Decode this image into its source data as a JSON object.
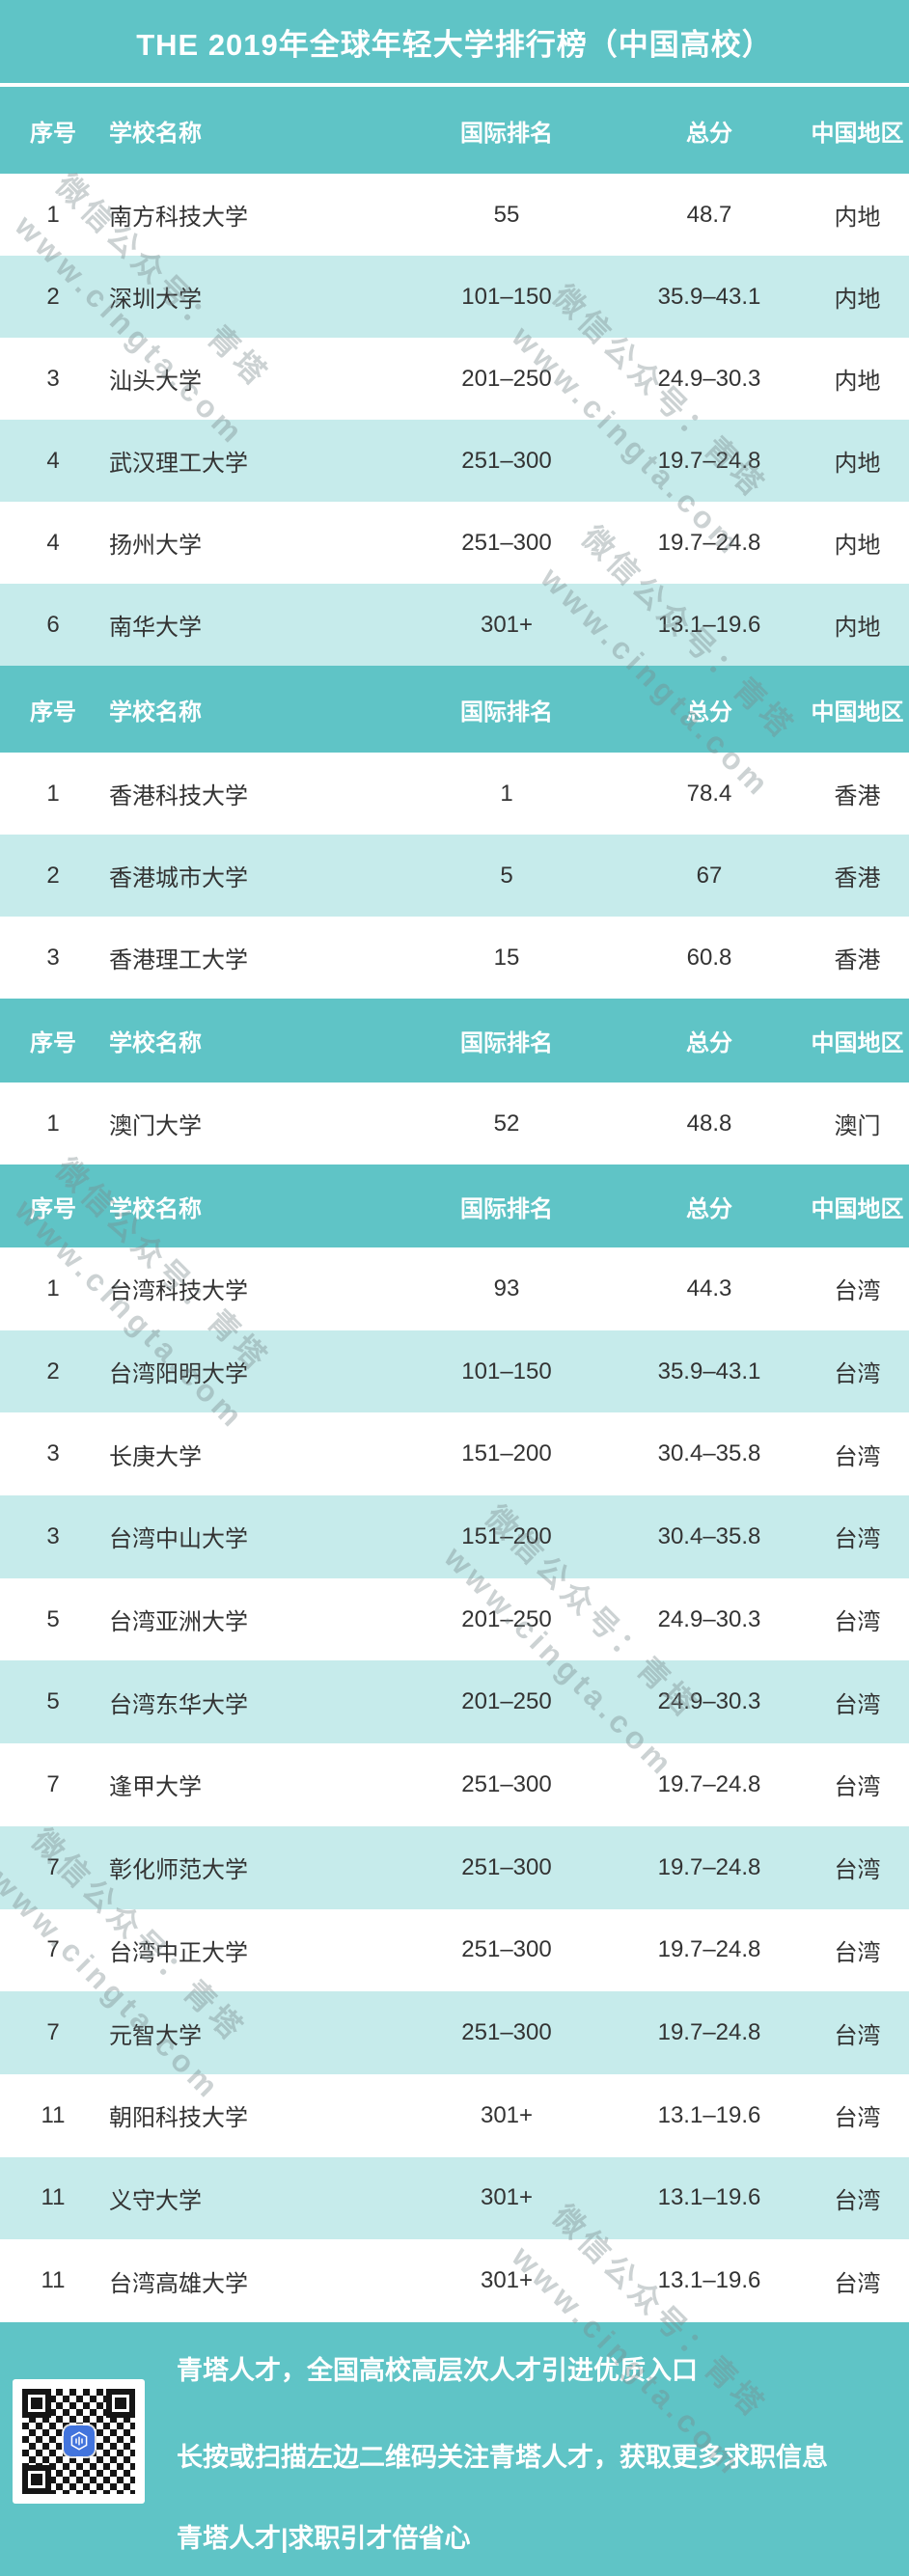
{
  "title": "THE 2019年全球年轻大学排行榜（中国高校）",
  "chart_data": {
    "type": "table",
    "title": "THE 2019年全球年轻大学排行榜（中国高校）",
    "columns": [
      "序号",
      "学校名称",
      "国际排名",
      "总分",
      "中国地区"
    ],
    "sections": [
      {
        "name": "mainland",
        "region": "内地",
        "rows": [
          [
            "1",
            "南方科技大学",
            "55",
            "48.7",
            "内地"
          ],
          [
            "2",
            "深圳大学",
            "101–150",
            "35.9–43.1",
            "内地"
          ],
          [
            "3",
            "汕头大学",
            "201–250",
            "24.9–30.3",
            "内地"
          ],
          [
            "4",
            "武汉理工大学",
            "251–300",
            "19.7–24.8",
            "内地"
          ],
          [
            "4",
            "扬州大学",
            "251–300",
            "19.7–24.8",
            "内地"
          ],
          [
            "6",
            "南华大学",
            "301+",
            "13.1–19.6",
            "内地"
          ]
        ]
      },
      {
        "name": "hongkong",
        "region": "香港",
        "rows": [
          [
            "1",
            "香港科技大学",
            "1",
            "78.4",
            "香港"
          ],
          [
            "2",
            "香港城市大学",
            "5",
            "67",
            "香港"
          ],
          [
            "3",
            "香港理工大学",
            "15",
            "60.8",
            "香港"
          ]
        ]
      },
      {
        "name": "macau",
        "region": "澳门",
        "rows": [
          [
            "1",
            "澳门大学",
            "52",
            "48.8",
            "澳门"
          ]
        ]
      },
      {
        "name": "taiwan",
        "region": "台湾",
        "rows": [
          [
            "1",
            "台湾科技大学",
            "93",
            "44.3",
            "台湾"
          ],
          [
            "2",
            "台湾阳明大学",
            "101–150",
            "35.9–43.1",
            "台湾"
          ],
          [
            "3",
            "长庚大学",
            "151–200",
            "30.4–35.8",
            "台湾"
          ],
          [
            "3",
            "台湾中山大学",
            "151–200",
            "30.4–35.8",
            "台湾"
          ],
          [
            "5",
            "台湾亚洲大学",
            "201–250",
            "24.9–30.3",
            "台湾"
          ],
          [
            "5",
            "台湾东华大学",
            "201–250",
            "24.9–30.3",
            "台湾"
          ],
          [
            "7",
            "逢甲大学",
            "251–300",
            "19.7–24.8",
            "台湾"
          ],
          [
            "7",
            "彰化师范大学",
            "251–300",
            "19.7–24.8",
            "台湾"
          ],
          [
            "7",
            "台湾中正大学",
            "251–300",
            "19.7–24.8",
            "台湾"
          ],
          [
            "7",
            "元智大学",
            "251–300",
            "19.7–24.8",
            "台湾"
          ],
          [
            "11",
            "朝阳科技大学",
            "301+",
            "13.1–19.6",
            "台湾"
          ],
          [
            "11",
            "义守大学",
            "301+",
            "13.1–19.6",
            "台湾"
          ],
          [
            "11",
            "台湾高雄大学",
            "301+",
            "13.1–19.6",
            "台湾"
          ]
        ]
      }
    ]
  },
  "watermark": {
    "line1": "微信公众号：青塔",
    "line2": "www.cingta.com"
  },
  "footer": {
    "line1": "青塔人才，全国高校高层次人才引进优质入口",
    "line2": "长按或扫描左边二维码关注青塔人才，获取更多求职信息",
    "line3": "青塔人才|求职引才倍省心",
    "qr_icon": "qingta-logo"
  },
  "colors": {
    "teal": "#5fc4c6",
    "light_row": "#c6ebeb",
    "text": "#333333",
    "logo_blue": "#4274dd"
  }
}
